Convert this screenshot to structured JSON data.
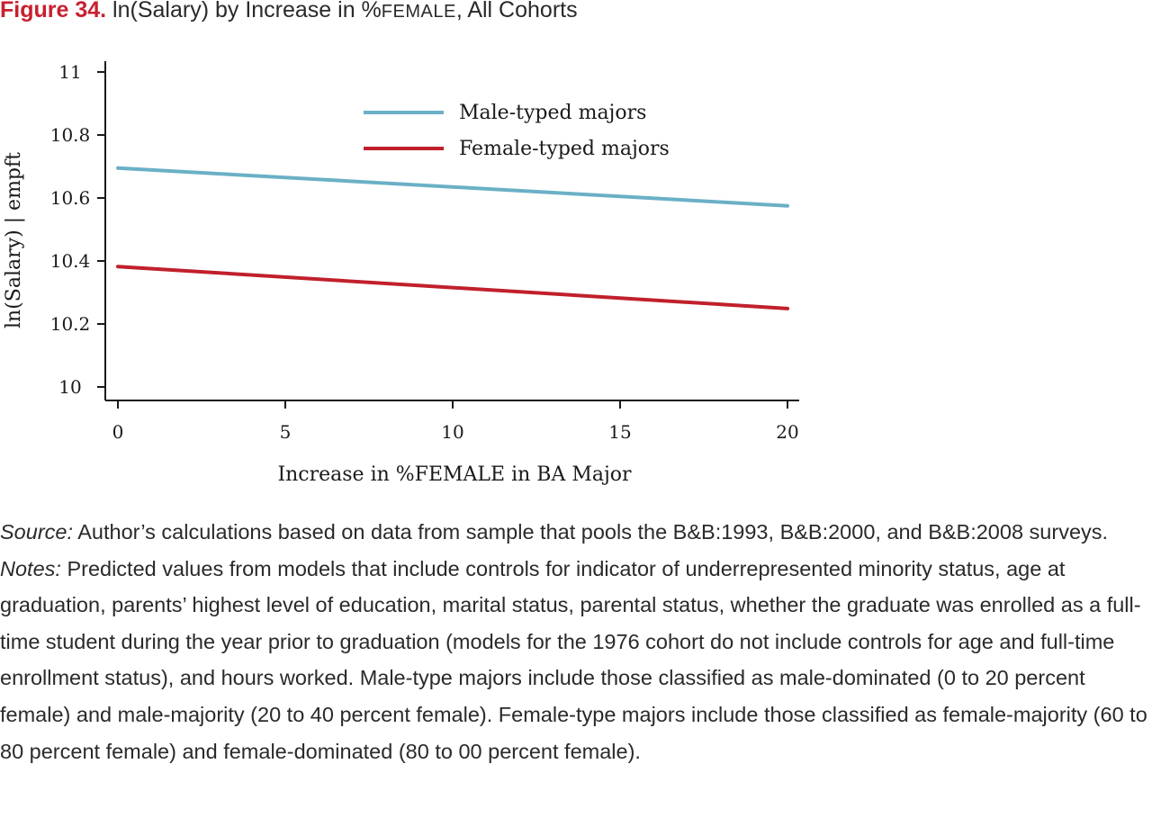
{
  "figure": {
    "label": "Figure 34.",
    "title_pre": "ln(Salary) by Increase in %",
    "title_sc": "FEMALE",
    "title_post": ", All Cohorts"
  },
  "chart_data": {
    "type": "line",
    "xlabel": "Increase in %FEMALE in BA Major",
    "ylabel": "ln(Salary) | empft",
    "xlim": [
      0,
      20
    ],
    "ylim": [
      10,
      11
    ],
    "x_ticks": [
      0,
      5,
      10,
      15,
      20
    ],
    "x_tick_labels": [
      "0",
      "5",
      "10",
      "15",
      "20"
    ],
    "y_ticks": [
      10,
      10.2,
      10.4,
      10.6,
      10.8,
      11
    ],
    "y_tick_labels": [
      "10",
      "10.2",
      "10.4",
      "10.6",
      "10.8",
      "11"
    ],
    "grid": false,
    "legend_position": "top-center",
    "series": [
      {
        "name": "Male-typed majors",
        "color": "#6ab0c6",
        "x": [
          0,
          20
        ],
        "values": [
          10.695,
          10.575
        ]
      },
      {
        "name": "Female-typed majors",
        "color": "#c0202c",
        "x": [
          0,
          20
        ],
        "values": [
          10.382,
          10.249
        ]
      }
    ]
  },
  "source": {
    "label": "Source:",
    "text": " Author’s calculations based on data from sample that pools the B&B:1993, B&B:2000, and B&B:2008 surveys."
  },
  "notes": {
    "label": "Notes:",
    "text": " Predicted values from models that include controls for indicator of underrepresented minority status, age at graduation, parents’ highest level of education, marital status, parental status, whether the graduate was enrolled as a full-time student during the year prior to graduation (models for the 1976 cohort do not include controls for age and full-time enrollment status), and hours worked. Male-type majors include those classified as male-dominated (0 to 20 percent female) and male-majority (20 to 40 percent female). Female-type majors include those classified as female-majority (60 to 80 percent female) and female-dominated (80 to 00 percent female)."
  }
}
